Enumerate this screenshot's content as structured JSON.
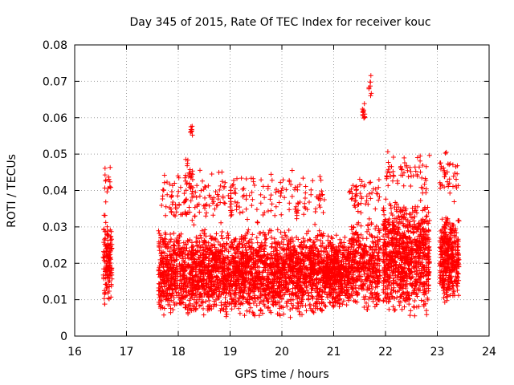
{
  "chart_data": {
    "type": "scatter",
    "title": "Day 345 of 2015, Rate Of TEC Index for receiver kouc",
    "xlabel": "GPS time / hours",
    "ylabel": "ROTI / TECUs",
    "xlim": [
      16,
      24
    ],
    "ylim": [
      0,
      0.08
    ],
    "xticks": [
      "16",
      "17",
      "18",
      "19",
      "20",
      "21",
      "22",
      "23",
      "24"
    ],
    "yticks": [
      "0",
      "0.01",
      "0.02",
      "0.03",
      "0.04",
      "0.05",
      "0.06",
      "0.07",
      "0.08"
    ],
    "grid": true,
    "marker": "+",
    "color": "#ff0000",
    "series": [
      {
        "name": "ROTI",
        "clusters": [
          {
            "x": [
              16.55,
              16.72
            ],
            "y": [
              0.008,
              0.035
            ],
            "n": 140
          },
          {
            "x": [
              16.58,
              16.7
            ],
            "y": [
              0.036,
              0.049
            ],
            "n": 14
          },
          {
            "x": [
              17.62,
              20.82
            ],
            "y": [
              0.005,
              0.03
            ],
            "n": 2600
          },
          {
            "x": [
              17.62,
              20.82
            ],
            "y": [
              0.03,
              0.046
            ],
            "n": 260
          },
          {
            "x": [
              18.1,
              18.28
            ],
            "y": [
              0.04,
              0.05
            ],
            "n": 18
          },
          {
            "x": [
              18.18,
              18.28
            ],
            "y": [
              0.055,
              0.058
            ],
            "n": 8
          },
          {
            "x": [
              20.82,
              21.3
            ],
            "y": [
              0.007,
              0.028
            ],
            "n": 480
          },
          {
            "x": [
              21.3,
              21.9
            ],
            "y": [
              0.007,
              0.033
            ],
            "n": 420
          },
          {
            "x": [
              21.3,
              21.9
            ],
            "y": [
              0.033,
              0.044
            ],
            "n": 50
          },
          {
            "x": [
              21.55,
              21.62
            ],
            "y": [
              0.059,
              0.065
            ],
            "n": 12
          },
          {
            "x": [
              21.68,
              21.74
            ],
            "y": [
              0.065,
              0.073
            ],
            "n": 8
          },
          {
            "x": [
              21.95,
              22.85
            ],
            "y": [
              0.005,
              0.038
            ],
            "n": 900
          },
          {
            "x": [
              21.95,
              22.85
            ],
            "y": [
              0.038,
              0.052
            ],
            "n": 60
          },
          {
            "x": [
              23.05,
              23.42
            ],
            "y": [
              0.008,
              0.034
            ],
            "n": 380
          },
          {
            "x": [
              23.05,
              23.42
            ],
            "y": [
              0.034,
              0.052
            ],
            "n": 40
          }
        ]
      }
    ]
  }
}
